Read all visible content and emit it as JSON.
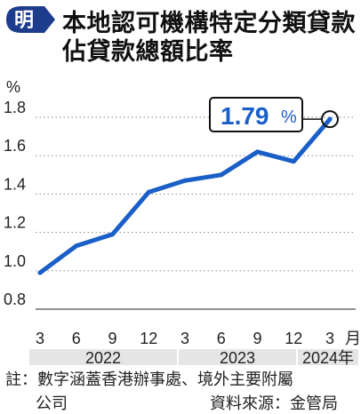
{
  "logo": {
    "glyph": "明",
    "bg_color": "#1e3c8c",
    "fg_color": "#ffffff"
  },
  "title": {
    "line1": "本地認可機構特定分類貸款",
    "line2": "佔貸款總額比率"
  },
  "colors": {
    "line": "#1a5fc8",
    "highlight": "#1a5fc8",
    "year_band": "#e5e5e5"
  },
  "chart_data": {
    "type": "line",
    "ylabel": "%",
    "ylim": [
      0.8,
      1.8
    ],
    "yticks": [
      "0.8",
      "1.0",
      "1.2",
      "1.4",
      "1.6",
      "1.8"
    ],
    "grid": "dotted-y",
    "x_unit": "月",
    "x": [
      "2022-03",
      "2022-06",
      "2022-09",
      "2022-12",
      "2023-03",
      "2023-06",
      "2023-09",
      "2023-12",
      "2024-03"
    ],
    "x_tick_labels": [
      "3",
      "6",
      "9",
      "12",
      "3",
      "6",
      "9",
      "12",
      "3"
    ],
    "year_labels": [
      {
        "label": "2022",
        "months": [
          "3",
          "6",
          "9",
          "12"
        ]
      },
      {
        "label": "2023",
        "months": [
          "3",
          "6",
          "9",
          "12"
        ]
      },
      {
        "label": "2024年",
        "months": [
          "3"
        ]
      }
    ],
    "series": [
      {
        "values": [
          0.99,
          1.13,
          1.19,
          1.41,
          1.47,
          1.5,
          1.62,
          1.57,
          1.79
        ]
      }
    ],
    "callout": {
      "value": "1.79",
      "unit": "%"
    }
  },
  "note": {
    "line1": "註：數字涵蓋香港辦事處、境外主要附屬",
    "line2_left": "公司",
    "line2_right": "資料來源：金管局"
  }
}
